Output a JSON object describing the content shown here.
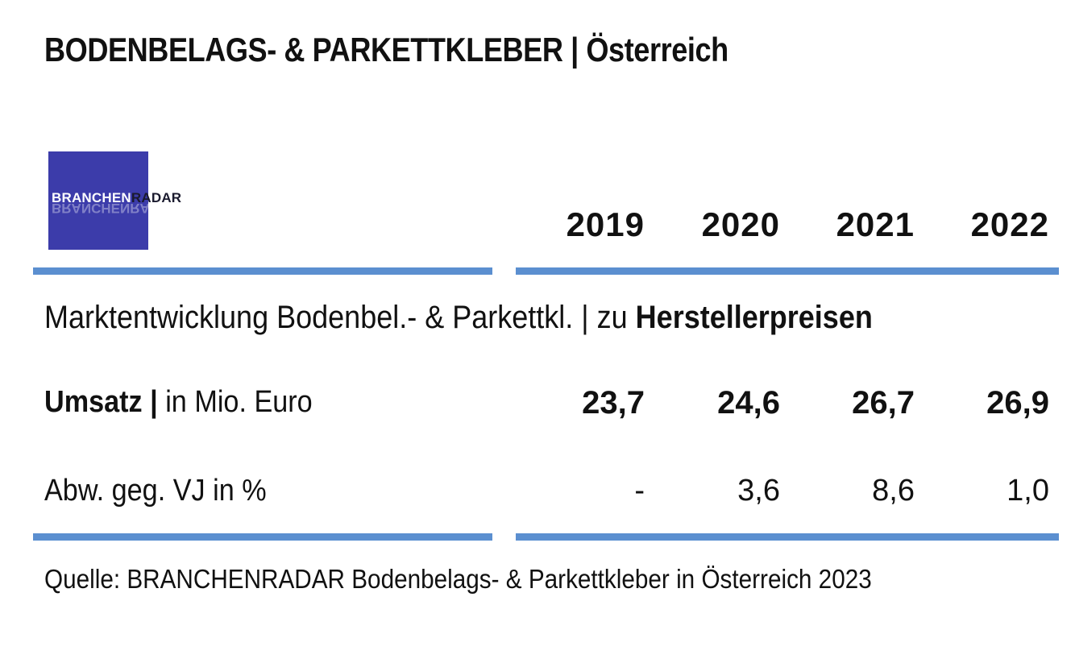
{
  "title": "BODENBELAGS- & PARKETTKLEBER | Österreich",
  "logo": {
    "part1": "BRANCHEN",
    "part2": "RADAR"
  },
  "subheading": {
    "text": "Marktentwicklung Bodenbel.- & Parkettkl. | zu ",
    "emphasis": "Herstellerpreisen"
  },
  "rows": {
    "revenue": {
      "label_bold": "Umsatz |",
      "label_rest": " in Mio. Euro"
    },
    "change": {
      "label": "Abw. geg. VJ in %"
    }
  },
  "source": "Quelle: BRANCHENRADAR Bodenbelags- & Parkettkleber in Österreich 2023",
  "colors": {
    "rule": "#5b8fd0",
    "logo_bg": "#3c3caa"
  },
  "chart_data": {
    "type": "table",
    "title": "BODENBELAGS- & PARKETTKLEBER | Österreich",
    "columns": [
      "2019",
      "2020",
      "2021",
      "2022"
    ],
    "revenue": [
      "23,7",
      "24,6",
      "26,7",
      "26,9"
    ],
    "change": [
      "-",
      "3,6",
      "8,6",
      "1,0"
    ]
  }
}
